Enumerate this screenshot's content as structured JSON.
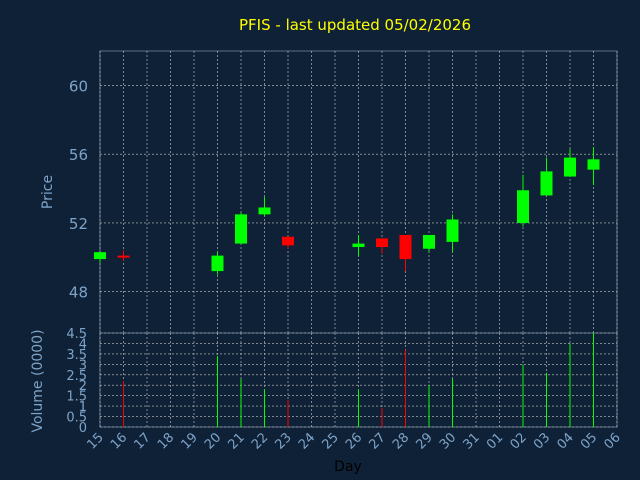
{
  "chart_data": {
    "type": "candlestick",
    "title": "PFIS - last updated 05/02/2026",
    "xlabel": "Day",
    "price_panel": {
      "ylabel": "Price",
      "yticks": [
        48,
        52,
        56,
        60
      ],
      "ylim": [
        45.6,
        62
      ]
    },
    "volume_panel": {
      "ylabel": "Volume (0000)",
      "yticks": [
        "0",
        "0.5",
        "1",
        "1.5",
        "2",
        "2.5",
        "3",
        "3.5",
        "4",
        "4.5"
      ],
      "ylim": [
        0,
        4.5
      ]
    },
    "x_tick_labels": [
      "15",
      "16",
      "17",
      "18",
      "19",
      "20",
      "21",
      "22",
      "23",
      "24",
      "25",
      "26",
      "27",
      "28",
      "29",
      "30",
      "31",
      "01",
      "02",
      "03",
      "04",
      "05",
      "06"
    ],
    "candles": [
      {
        "day": "15",
        "open": 49.9,
        "high": 50.3,
        "low": 49.7,
        "close": 50.3,
        "volume": 0,
        "color": "#00ff00"
      },
      {
        "day": "16",
        "open": 50.1,
        "high": 50.4,
        "low": 49.8,
        "close": 50.0,
        "volume": 2.2,
        "color": "#ff0000"
      },
      {
        "day": "20",
        "open": 49.2,
        "high": 50.3,
        "low": 49.0,
        "close": 50.1,
        "volume": 3.4,
        "color": "#00ff00"
      },
      {
        "day": "21",
        "open": 50.8,
        "high": 52.6,
        "low": 50.8,
        "close": 52.5,
        "volume": 2.3,
        "color": "#00ff00"
      },
      {
        "day": "22",
        "open": 52.5,
        "high": 53.5,
        "low": 52.4,
        "close": 52.9,
        "volume": 1.8,
        "color": "#00ff00"
      },
      {
        "day": "23",
        "open": 51.2,
        "high": 51.2,
        "low": 50.5,
        "close": 50.7,
        "volume": 1.3,
        "color": "#ff0000"
      },
      {
        "day": "26",
        "open": 50.6,
        "high": 51.3,
        "low": 50.1,
        "close": 50.8,
        "volume": 1.8,
        "color": "#00ff00"
      },
      {
        "day": "27",
        "open": 51.1,
        "high": 51.1,
        "low": 50.2,
        "close": 50.6,
        "volume": 0.9,
        "color": "#ff0000"
      },
      {
        "day": "28",
        "open": 51.3,
        "high": 51.3,
        "low": 49.2,
        "close": 49.9,
        "volume": 3.7,
        "color": "#ff0000"
      },
      {
        "day": "29",
        "open": 50.5,
        "high": 51.3,
        "low": 50.3,
        "close": 51.3,
        "volume": 2.0,
        "color": "#00ff00"
      },
      {
        "day": "30",
        "open": 50.9,
        "high": 52.5,
        "low": 50.3,
        "close": 52.2,
        "volume": 2.3,
        "color": "#00ff00"
      },
      {
        "day": "02",
        "open": 52.0,
        "high": 54.8,
        "low": 51.8,
        "close": 53.9,
        "volume": 3.0,
        "color": "#00ff00"
      },
      {
        "day": "03",
        "open": 53.6,
        "high": 55.8,
        "low": 53.6,
        "close": 55.0,
        "volume": 2.6,
        "color": "#00ff00"
      },
      {
        "day": "04",
        "open": 54.7,
        "high": 56.3,
        "low": 54.7,
        "close": 55.8,
        "volume": 4.0,
        "color": "#00ff00"
      },
      {
        "day": "05",
        "open": 55.1,
        "high": 56.4,
        "low": 54.2,
        "close": 55.7,
        "volume": 4.5,
        "color": "#00ff00"
      }
    ],
    "grid": true,
    "colors": {
      "background": "#0f2136",
      "title": "#ffff00",
      "axis_text": "#7ea3c8",
      "grid": "#c8c8c8",
      "up": "#00ff00",
      "down": "#ff0000"
    }
  }
}
